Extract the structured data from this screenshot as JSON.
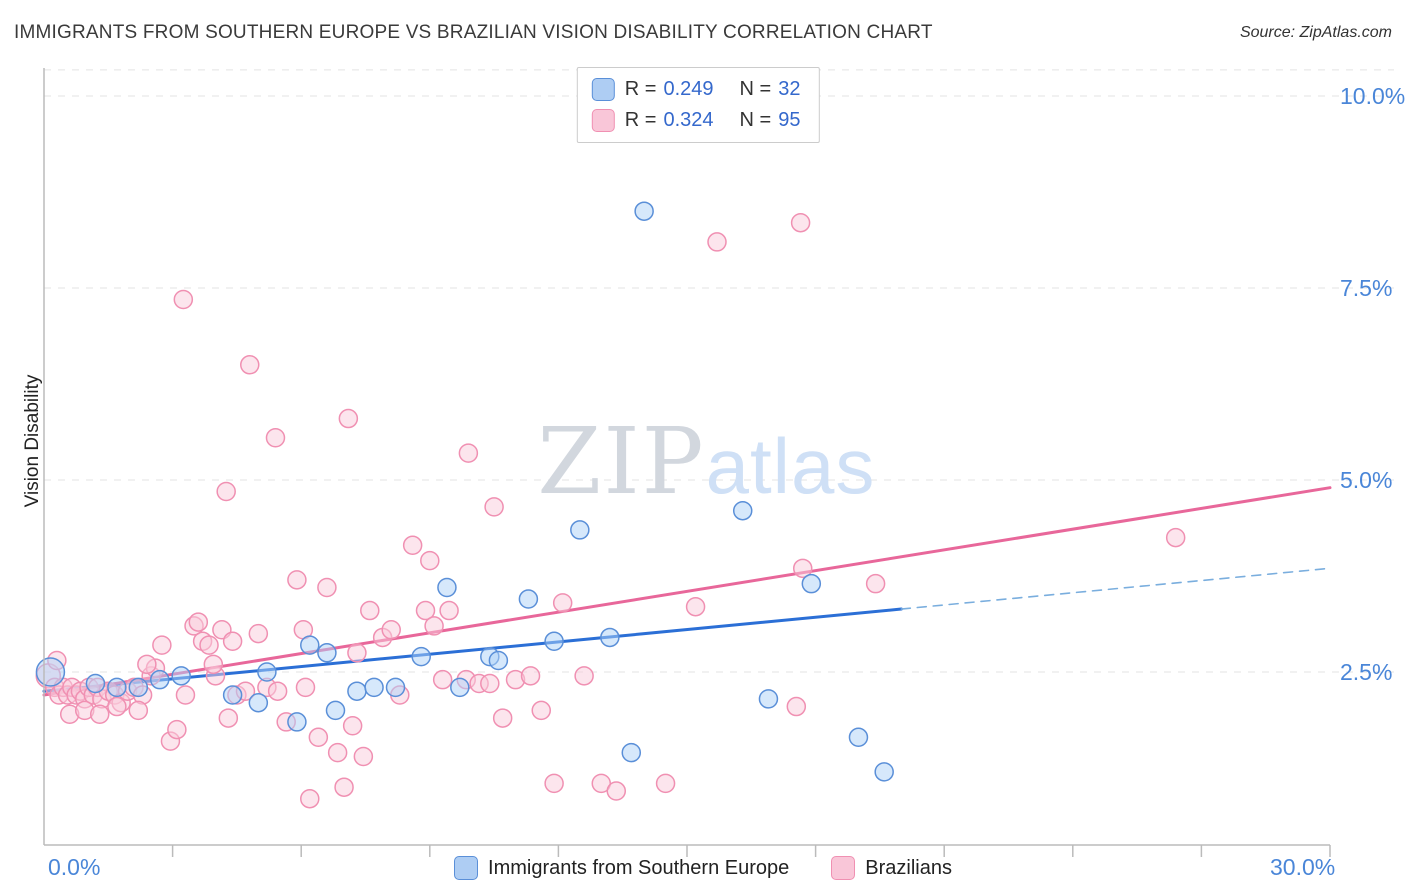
{
  "header": {
    "title": "IMMIGRANTS FROM SOUTHERN EUROPE VS BRAZILIAN VISION DISABILITY CORRELATION CHART",
    "source": "Source: ZipAtlas.com"
  },
  "ylabel": "Vision Disability",
  "watermark": {
    "zip": "ZIP",
    "atlas": "atlas"
  },
  "legend": {
    "rows": [
      {
        "r_label": "R =",
        "r_value": "0.249",
        "n_label": "N =",
        "n_value": "32",
        "series": "blue"
      },
      {
        "r_label": "R =",
        "r_value": "0.324",
        "n_label": "N =",
        "n_value": "95",
        "series": "pink"
      }
    ]
  },
  "bottom_legend": [
    {
      "label": "Immigrants from Southern Europe",
      "series": "blue"
    },
    {
      "label": "Brazilians",
      "series": "pink"
    }
  ],
  "chart_data": {
    "type": "scatter",
    "title": "Immigrants from Southern Europe vs Brazilian Vision Disability",
    "xlabel": "Immigrants from Southern Europe (%)",
    "ylabel": "Vision Disability (%)",
    "xlim": [
      0,
      30
    ],
    "ylim": [
      0,
      10.34
    ],
    "grid": true,
    "x_edge_labels": [
      {
        "pos": 0,
        "label": "0.0%"
      },
      {
        "pos": 30,
        "label": "30.0%"
      }
    ],
    "x_minor_ticks": [
      3,
      6,
      9,
      12,
      15,
      18,
      21,
      24,
      27,
      30
    ],
    "y_ticks": [
      {
        "value": 2.5,
        "label": "2.5%"
      },
      {
        "value": 5.0,
        "label": "5.0%"
      },
      {
        "value": 7.5,
        "label": "7.5%"
      },
      {
        "value": 10.0,
        "label": "10.0%"
      }
    ],
    "axis_color": "#bbbbbb",
    "grid_color": "#e3e3e3",
    "tick_label_color": "#4a86d8",
    "series": [
      {
        "name": "Immigrants from Southern Europe",
        "R": 0.249,
        "N": 32,
        "stroke": "#5a8fd8",
        "fill": "#add2f7",
        "points": [
          [
            0.15,
            2.5,
            14
          ],
          [
            1.2,
            2.35
          ],
          [
            1.7,
            2.3
          ],
          [
            2.2,
            2.3
          ],
          [
            2.7,
            2.4
          ],
          [
            3.2,
            2.45
          ],
          [
            4.4,
            2.2
          ],
          [
            5.0,
            2.1
          ],
          [
            5.2,
            2.5
          ],
          [
            5.9,
            1.85
          ],
          [
            6.2,
            2.85
          ],
          [
            6.6,
            2.75
          ],
          [
            6.8,
            2.0
          ],
          [
            7.3,
            2.25
          ],
          [
            7.7,
            2.3
          ],
          [
            8.2,
            2.3
          ],
          [
            8.8,
            2.7
          ],
          [
            9.4,
            3.6
          ],
          [
            9.7,
            2.3
          ],
          [
            10.4,
            2.7
          ],
          [
            10.6,
            2.65
          ],
          [
            11.3,
            3.45
          ],
          [
            11.9,
            2.9
          ],
          [
            12.5,
            4.35
          ],
          [
            13.2,
            2.95
          ],
          [
            13.7,
            1.45
          ],
          [
            14.0,
            8.5
          ],
          [
            16.3,
            4.6
          ],
          [
            16.9,
            2.15
          ],
          [
            17.9,
            3.65
          ],
          [
            19.0,
            1.65
          ],
          [
            19.6,
            1.2
          ]
        ]
      },
      {
        "name": "Brazilians",
        "R": 0.324,
        "N": 95,
        "stroke": "#f090b2",
        "fill": "#f9ccdb",
        "points": [
          [
            0.1,
            2.45,
            12
          ],
          [
            0.25,
            2.3
          ],
          [
            0.35,
            2.2
          ],
          [
            0.45,
            2.3
          ],
          [
            0.55,
            2.2
          ],
          [
            0.65,
            2.3
          ],
          [
            0.75,
            2.2
          ],
          [
            0.85,
            2.25
          ],
          [
            0.95,
            2.15
          ],
          [
            1.05,
            2.3
          ],
          [
            1.15,
            2.2
          ],
          [
            1.25,
            2.3
          ],
          [
            1.35,
            2.15
          ],
          [
            1.5,
            2.25
          ],
          [
            1.65,
            2.2
          ],
          [
            1.8,
            2.1
          ],
          [
            1.95,
            2.25
          ],
          [
            2.1,
            2.3
          ],
          [
            2.3,
            2.2
          ],
          [
            2.5,
            2.45
          ],
          [
            0.6,
            1.95
          ],
          [
            0.95,
            2.0
          ],
          [
            1.3,
            1.95
          ],
          [
            1.7,
            2.05
          ],
          [
            2.2,
            2.0
          ],
          [
            2.6,
            2.55
          ],
          [
            2.75,
            2.85
          ],
          [
            2.95,
            1.6
          ],
          [
            3.1,
            1.75
          ],
          [
            3.3,
            2.2
          ],
          [
            3.5,
            3.1
          ],
          [
            3.6,
            3.15
          ],
          [
            3.7,
            2.9
          ],
          [
            3.85,
            2.85
          ],
          [
            4.0,
            2.45
          ],
          [
            4.15,
            3.05
          ],
          [
            4.3,
            1.9
          ],
          [
            4.5,
            2.2
          ],
          [
            4.7,
            2.25
          ],
          [
            5.0,
            3.0
          ],
          [
            5.2,
            2.3
          ],
          [
            5.45,
            2.25
          ],
          [
            5.65,
            1.85
          ],
          [
            5.9,
            3.7
          ],
          [
            6.1,
            2.3
          ],
          [
            6.2,
            0.85
          ],
          [
            6.4,
            1.65
          ],
          [
            6.6,
            3.6
          ],
          [
            6.85,
            1.45
          ],
          [
            7.0,
            1.0
          ],
          [
            7.2,
            1.8
          ],
          [
            7.45,
            1.4
          ],
          [
            7.6,
            3.3
          ],
          [
            7.9,
            2.95
          ],
          [
            8.3,
            2.2
          ],
          [
            8.6,
            4.15
          ],
          [
            8.9,
            3.3
          ],
          [
            9.0,
            3.95
          ],
          [
            9.1,
            3.1
          ],
          [
            9.3,
            2.4
          ],
          [
            9.85,
            2.4
          ],
          [
            10.15,
            2.35
          ],
          [
            10.4,
            2.35
          ],
          [
            10.7,
            1.9
          ],
          [
            11.0,
            2.4
          ],
          [
            11.35,
            2.45
          ],
          [
            11.6,
            2.0
          ],
          [
            11.9,
            1.05
          ],
          [
            12.1,
            3.4
          ],
          [
            12.6,
            2.45
          ],
          [
            13.0,
            1.05
          ],
          [
            13.35,
            0.95
          ],
          [
            14.5,
            1.05
          ],
          [
            15.2,
            3.35
          ],
          [
            17.55,
            2.05
          ],
          [
            3.25,
            7.35
          ],
          [
            4.8,
            6.5
          ],
          [
            5.4,
            5.55
          ],
          [
            7.1,
            5.8
          ],
          [
            9.9,
            5.35
          ],
          [
            4.25,
            4.85
          ],
          [
            10.5,
            4.65
          ],
          [
            15.7,
            8.1
          ],
          [
            17.65,
            8.35
          ],
          [
            26.4,
            4.25
          ],
          [
            17.7,
            3.85
          ],
          [
            19.4,
            3.65
          ],
          [
            6.05,
            3.05
          ],
          [
            4.4,
            2.9
          ],
          [
            3.95,
            2.6
          ],
          [
            8.1,
            3.05
          ],
          [
            9.45,
            3.3
          ],
          [
            7.3,
            2.75
          ],
          [
            2.4,
            2.6
          ],
          [
            0.3,
            2.65
          ]
        ]
      }
    ],
    "trend_lines": [
      {
        "name": "blue-solid",
        "color": "#2b6fd6",
        "width": 3,
        "dash": "",
        "from": [
          0,
          2.25
        ],
        "to": [
          20,
          3.32
        ]
      },
      {
        "name": "blue-dashed",
        "color": "#7aaede",
        "width": 1.6,
        "dash": "9 7",
        "from": [
          20,
          3.32
        ],
        "to": [
          30,
          3.85
        ]
      },
      {
        "name": "pink-solid",
        "color": "#e8679a",
        "width": 3,
        "dash": "",
        "from": [
          0,
          2.2
        ],
        "to": [
          30,
          4.9
        ]
      }
    ]
  }
}
